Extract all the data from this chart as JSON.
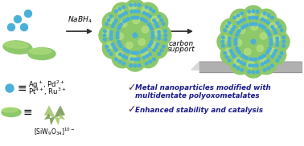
{
  "background_color": "#ffffff",
  "fig_width": 3.78,
  "fig_height": 1.82,
  "dpi": 100,
  "green": "#8dc86a",
  "green_light": "#b8e080",
  "blue": "#4ab0d8",
  "gray_top": "#d8d8d8",
  "gray_side": "#b0b0b0",
  "gray_support": "#c0c0c0",
  "arrow_color": "#333333",
  "text_color": "#1a1a8c",
  "check_color": "#4a3060",
  "nabh4_label": "NaBH$_4$",
  "carbon_label_1": "carbon",
  "carbon_label_2": "support",
  "ion_label_line1": "Ag$^+$, Pd$^{2+}$",
  "ion_label_line2": "Pt$^{4+}$, Ru$^{3+}$",
  "pom_label": "[SiW$_9$O$_{34}$]$^{10-}$"
}
